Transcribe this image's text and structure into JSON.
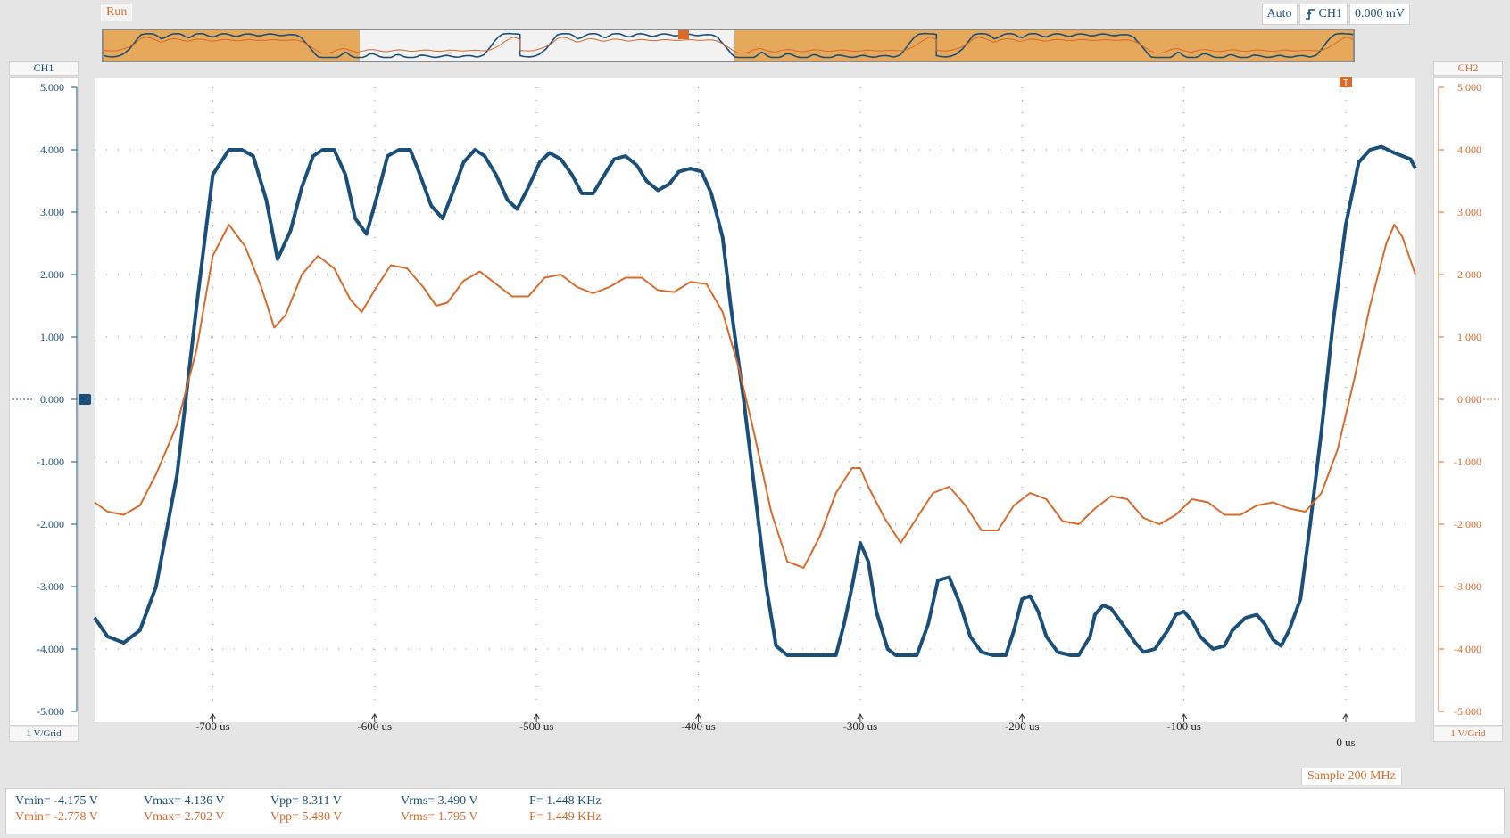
{
  "status": {
    "run_label": "Run"
  },
  "trigger": {
    "mode": "Auto",
    "source": "CH1",
    "level": "0.000 mV"
  },
  "channels": {
    "ch1": {
      "label": "CH1",
      "scale": "1 V/Grid",
      "color": "#1a4f7a"
    },
    "ch2": {
      "label": "CH2",
      "scale": "1 V/Grid",
      "color": "#d86a2a"
    }
  },
  "sample_rate": "Sample 200 MHz",
  "y_ticks": [
    "5.000",
    "4.000",
    "3.000",
    "2.000",
    "1.000",
    "0.000",
    "-1.000",
    "-2.000",
    "-3.000",
    "-4.000",
    "-5.000"
  ],
  "x_ticks": [
    "-700 us",
    "-600 us",
    "-500 us",
    "-400 us",
    "-300 us",
    "-200 us",
    "-100 us",
    "0 us"
  ],
  "measurements": {
    "ch1": {
      "vmin": "Vmin= -4.175 V",
      "vmax": "Vmax= 4.136 V",
      "vpp": "Vpp= 8.311 V",
      "vrms": "Vrms= 3.490 V",
      "freq": "F= 1.448 KHz"
    },
    "ch2": {
      "vmin": "Vmin= -2.778 V",
      "vmax": "Vmax= 2.702 V",
      "vpp": "Vpp= 5.480 V",
      "vrms": "Vrms= 1.795 V",
      "freq": "F= 1.449 KHz"
    }
  },
  "chart_data": {
    "type": "line",
    "xlabel": "",
    "ylabel": "",
    "x_unit": "us",
    "xlim": [
      -773,
      43
    ],
    "ylim": [
      -5,
      5
    ],
    "grid": true,
    "series": [
      {
        "name": "CH1",
        "color": "#1a4f7a",
        "x": [
          -773,
          -765,
          -755,
          -745,
          -735,
          -722,
          -710,
          -700,
          -690,
          -682,
          -675,
          -667,
          -660,
          -652,
          -645,
          -638,
          -632,
          -625,
          -618,
          -612,
          -605,
          -598,
          -592,
          -585,
          -578,
          -572,
          -565,
          -558,
          -552,
          -545,
          -538,
          -532,
          -525,
          -518,
          -512,
          -505,
          -498,
          -492,
          -485,
          -478,
          -472,
          -465,
          -458,
          -452,
          -445,
          -438,
          -432,
          -425,
          -418,
          -412,
          -405,
          -398,
          -392,
          -385,
          -380,
          -372,
          -365,
          -358,
          -352,
          -345,
          -340,
          -335,
          -325,
          -315,
          -310,
          -305,
          -300,
          -295,
          -290,
          -283,
          -278,
          -270,
          -265,
          -258,
          -252,
          -245,
          -238,
          -232,
          -225,
          -218,
          -210,
          -205,
          -200,
          -195,
          -190,
          -185,
          -178,
          -170,
          -165,
          -158,
          -155,
          -150,
          -145,
          -138,
          -130,
          -125,
          -118,
          -110,
          -105,
          -100,
          -95,
          -90,
          -82,
          -75,
          -70,
          -62,
          -55,
          -50,
          -45,
          -40,
          -35,
          -28,
          -22,
          -15,
          -8,
          0,
          8,
          15,
          22,
          30,
          35,
          40,
          43
        ],
        "y": [
          -3.5,
          -3.8,
          -3.9,
          -3.7,
          -3.0,
          -1.2,
          1.5,
          3.6,
          4.0,
          4.0,
          3.9,
          3.2,
          2.25,
          2.7,
          3.4,
          3.9,
          4.0,
          4.0,
          3.6,
          2.9,
          2.65,
          3.3,
          3.9,
          4.0,
          4.0,
          3.6,
          3.1,
          2.9,
          3.3,
          3.8,
          4.0,
          3.9,
          3.6,
          3.2,
          3.05,
          3.4,
          3.8,
          3.95,
          3.85,
          3.6,
          3.3,
          3.3,
          3.6,
          3.85,
          3.9,
          3.75,
          3.5,
          3.35,
          3.45,
          3.65,
          3.7,
          3.65,
          3.3,
          2.6,
          1.5,
          0,
          -1.5,
          -3.0,
          -3.95,
          -4.1,
          -4.1,
          -4.1,
          -4.1,
          -4.1,
          -3.6,
          -3.0,
          -2.3,
          -2.6,
          -3.4,
          -4.0,
          -4.1,
          -4.1,
          -4.1,
          -3.6,
          -2.9,
          -2.85,
          -3.3,
          -3.8,
          -4.05,
          -4.1,
          -4.1,
          -3.7,
          -3.2,
          -3.15,
          -3.4,
          -3.8,
          -4.05,
          -4.1,
          -4.1,
          -3.8,
          -3.45,
          -3.3,
          -3.35,
          -3.6,
          -3.9,
          -4.05,
          -4.0,
          -3.7,
          -3.45,
          -3.4,
          -3.55,
          -3.8,
          -4.0,
          -3.95,
          -3.7,
          -3.5,
          -3.45,
          -3.6,
          -3.85,
          -3.95,
          -3.7,
          -3.2,
          -2.0,
          -0.5,
          1.2,
          2.8,
          3.8,
          4.0,
          4.05,
          3.95,
          3.9,
          3.85,
          3.7
        ]
      },
      {
        "name": "CH2",
        "color": "#d86a2a",
        "x": [
          -773,
          -765,
          -755,
          -745,
          -735,
          -722,
          -710,
          -700,
          -690,
          -680,
          -670,
          -662,
          -655,
          -645,
          -635,
          -625,
          -615,
          -608,
          -600,
          -590,
          -580,
          -570,
          -562,
          -555,
          -545,
          -535,
          -525,
          -515,
          -505,
          -495,
          -485,
          -475,
          -465,
          -455,
          -445,
          -435,
          -425,
          -415,
          -405,
          -395,
          -385,
          -375,
          -365,
          -355,
          -345,
          -335,
          -325,
          -315,
          -305,
          -300,
          -295,
          -285,
          -275,
          -265,
          -255,
          -245,
          -235,
          -225,
          -215,
          -205,
          -195,
          -185,
          -175,
          -165,
          -155,
          -145,
          -135,
          -125,
          -115,
          -105,
          -95,
          -85,
          -75,
          -65,
          -55,
          -45,
          -35,
          -25,
          -15,
          -5,
          5,
          15,
          25,
          30,
          35,
          43
        ],
        "y": [
          -1.65,
          -1.8,
          -1.85,
          -1.7,
          -1.2,
          -0.4,
          0.8,
          2.3,
          2.8,
          2.45,
          1.8,
          1.15,
          1.35,
          2.0,
          2.3,
          2.1,
          1.6,
          1.4,
          1.75,
          2.15,
          2.1,
          1.8,
          1.5,
          1.55,
          1.9,
          2.05,
          1.85,
          1.65,
          1.65,
          1.95,
          2.0,
          1.8,
          1.7,
          1.8,
          1.95,
          1.95,
          1.75,
          1.72,
          1.88,
          1.85,
          1.4,
          0.5,
          -0.6,
          -1.8,
          -2.6,
          -2.7,
          -2.2,
          -1.5,
          -1.1,
          -1.1,
          -1.4,
          -1.9,
          -2.3,
          -1.9,
          -1.5,
          -1.4,
          -1.7,
          -2.1,
          -2.1,
          -1.7,
          -1.5,
          -1.6,
          -1.95,
          -2.0,
          -1.75,
          -1.55,
          -1.6,
          -1.9,
          -2.0,
          -1.85,
          -1.6,
          -1.65,
          -1.85,
          -1.85,
          -1.7,
          -1.65,
          -1.75,
          -1.8,
          -1.5,
          -0.8,
          0.3,
          1.5,
          2.5,
          2.8,
          2.6,
          2.0
        ]
      }
    ]
  }
}
